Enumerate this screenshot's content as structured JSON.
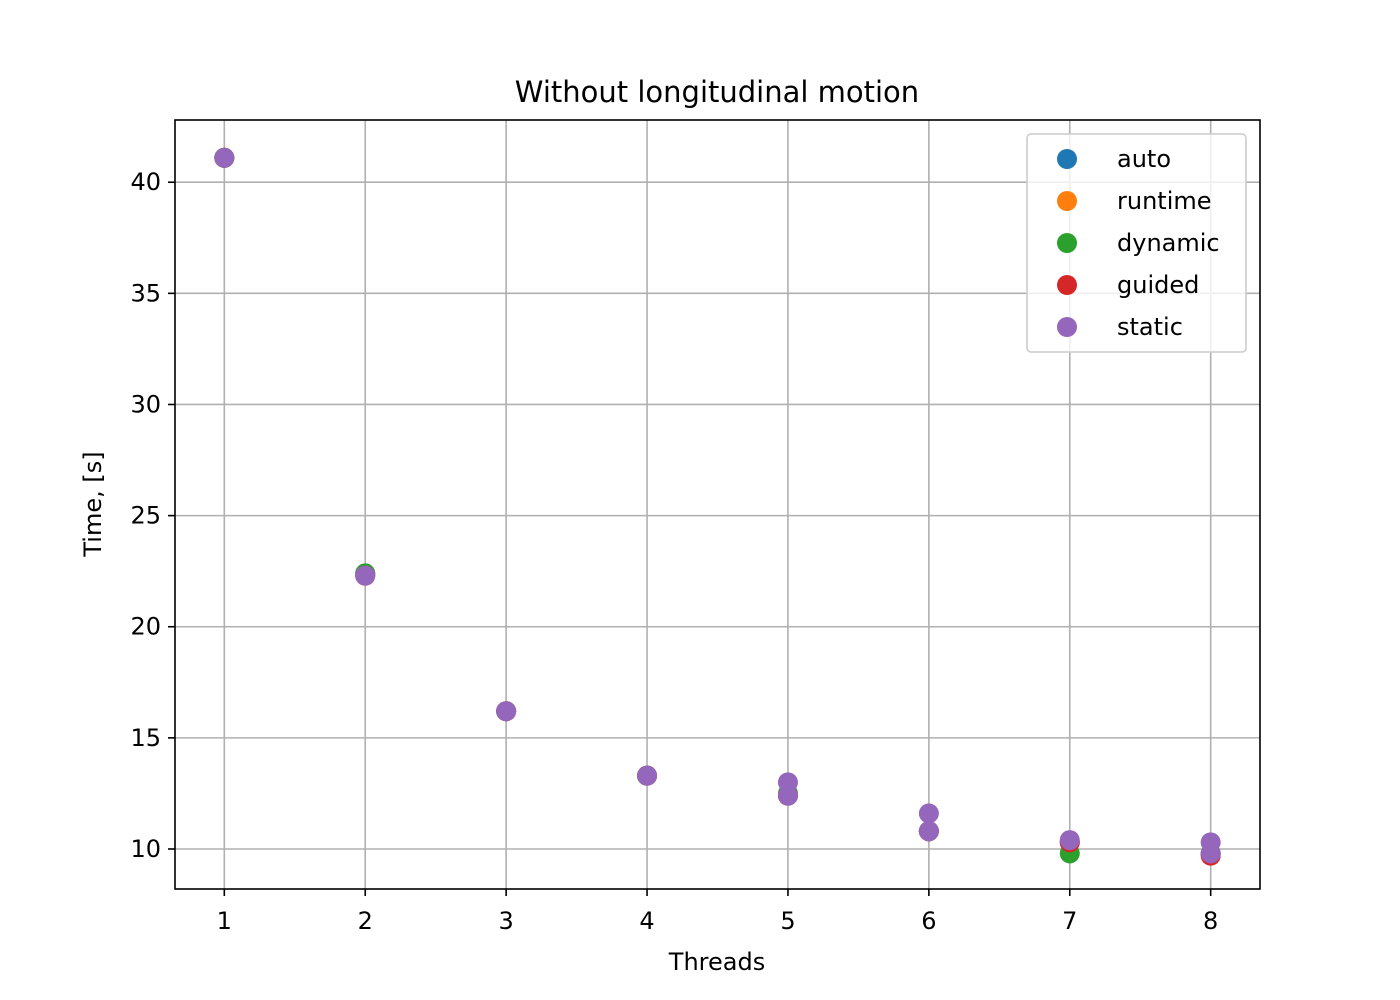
{
  "chart_data": {
    "type": "scatter",
    "title": "Without longitudinal motion",
    "xlabel": "Threads",
    "ylabel": "Time, [s]",
    "xlim": [
      0.65,
      8.35
    ],
    "ylim": [
      8.2,
      42.8
    ],
    "xticks": [
      1,
      2,
      3,
      4,
      5,
      6,
      7,
      8
    ],
    "yticks": [
      10,
      15,
      20,
      25,
      30,
      35,
      40
    ],
    "grid": true,
    "legend_position": "top-right",
    "series": [
      {
        "name": "auto",
        "color": "#1f77b4",
        "points": [
          [
            1,
            41.1
          ],
          [
            2,
            22.4
          ],
          [
            3,
            16.2
          ],
          [
            4,
            13.3
          ],
          [
            5,
            12.4
          ],
          [
            6,
            10.8
          ],
          [
            7,
            10.3
          ],
          [
            8,
            9.8
          ]
        ]
      },
      {
        "name": "runtime",
        "color": "#ff7f0e",
        "points": [
          [
            1,
            41.1
          ],
          [
            2,
            22.3
          ],
          [
            3,
            16.2
          ],
          [
            4,
            13.3
          ],
          [
            5,
            12.4
          ],
          [
            6,
            10.8
          ],
          [
            7,
            10.3
          ],
          [
            8,
            9.8
          ]
        ]
      },
      {
        "name": "dynamic",
        "color": "#2ca02c",
        "points": [
          [
            1,
            41.1
          ],
          [
            2,
            22.4
          ],
          [
            3,
            16.2
          ],
          [
            4,
            13.3
          ],
          [
            5,
            12.5
          ],
          [
            6,
            10.8
          ],
          [
            7,
            9.8
          ],
          [
            8,
            9.8
          ]
        ]
      },
      {
        "name": "guided",
        "color": "#d62728",
        "points": [
          [
            1,
            41.1
          ],
          [
            2,
            22.3
          ],
          [
            3,
            16.2
          ],
          [
            4,
            13.3
          ],
          [
            5,
            12.4
          ],
          [
            6,
            10.8
          ],
          [
            7,
            10.3
          ],
          [
            8,
            9.7
          ]
        ]
      },
      {
        "name": "static",
        "color": "#9467bd",
        "points": [
          [
            1,
            41.1
          ],
          [
            2,
            22.3
          ],
          [
            3,
            16.2
          ],
          [
            4,
            13.3
          ],
          [
            5,
            13.0
          ],
          [
            5,
            12.4
          ],
          [
            6,
            11.6
          ],
          [
            6,
            10.8
          ],
          [
            7,
            10.4
          ],
          [
            8,
            10.3
          ],
          [
            8,
            9.8
          ]
        ]
      }
    ]
  }
}
